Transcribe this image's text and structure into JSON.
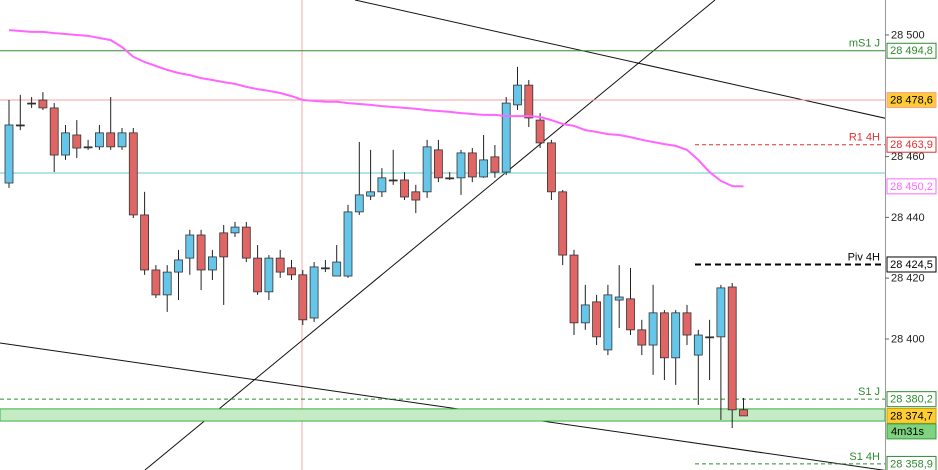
{
  "chart_data": {
    "type": "candlestick",
    "ylim": [
      28356.9,
      28511.5
    ],
    "yticks": [
      {
        "value": 28500,
        "label": "28 500"
      },
      {
        "value": 28460,
        "label": "28 460"
      },
      {
        "value": 28440,
        "label": "28 440"
      },
      {
        "value": 28420,
        "label": "28 420"
      },
      {
        "value": 28400,
        "label": "28 400"
      }
    ],
    "up_color": "#66c6ea",
    "down_color": "#e06666",
    "candles": {
      "open": [
        28451.3,
        28470.4,
        28477.6,
        28478.6,
        28476.0,
        28460.5,
        28467.1,
        28463.2,
        28463.2,
        28467.8,
        28463.2,
        28467.8,
        28440.8,
        28422.7,
        28414.5,
        28422.0,
        28426.6,
        28434.2,
        28422.7,
        28434.9,
        28434.9,
        28436.8,
        28426.6,
        28415.5,
        28426.6,
        28423.4,
        28421.1,
        28406.9,
        28423.4,
        28420.7,
        28420.7,
        28441.8,
        28447.0,
        28448.4,
        28452.3,
        28452.3,
        28448.4,
        28448.4,
        28462.2,
        28453.0,
        28453.0,
        28461.2,
        28453.3,
        28459.9,
        28454.9,
        28477.0,
        28483.5,
        28472.0,
        28464.5,
        28448.4,
        28427.6,
        28405.3,
        28412.2,
        28396.4,
        28412.8,
        28413.2,
        28403.0,
        28398.0,
        28408.6,
        28393.8,
        28408.6,
        28394.7,
        28400.7,
        28400.7,
        28417.1,
        28376.7
      ],
      "high": [
        28478.6,
        28480.3,
        28479.6,
        28481.2,
        28477.6,
        28470.4,
        28472.0,
        28465.5,
        28470.4,
        28479.6,
        28469.4,
        28469.4,
        28448.4,
        28424.3,
        28424.3,
        28429.3,
        28435.9,
        28435.9,
        28429.3,
        28437.5,
        28438.5,
        28438.5,
        28430.9,
        28427.6,
        28429.3,
        28426.0,
        28422.7,
        28425.3,
        28426.0,
        28430.9,
        28444.1,
        28464.8,
        28462.2,
        28456.2,
        28462.2,
        28454.9,
        28450.7,
        28465.5,
        28465.5,
        28454.9,
        28462.2,
        28462.8,
        28467.1,
        28463.8,
        28479.6,
        28489.5,
        28485.2,
        28474.3,
        28465.5,
        28449.0,
        28429.3,
        28417.8,
        28414.5,
        28417.8,
        28424.3,
        28423.4,
        28406.3,
        28417.8,
        28409.5,
        28409.5,
        28411.2,
        28403.0,
        28406.3,
        28417.8,
        28418.4,
        28380.6
      ],
      "low": [
        28449.7,
        28468.7,
        28476.0,
        28475.3,
        28454.9,
        28458.9,
        28459.5,
        28462.2,
        28462.2,
        28462.2,
        28462.2,
        28439.8,
        28421.1,
        28413.5,
        28408.9,
        28412.8,
        28421.1,
        28416.1,
        28419.4,
        28411.2,
        28433.6,
        28425.3,
        28414.5,
        28412.8,
        28420.1,
        28419.4,
        28404.6,
        28405.6,
        28422.0,
        28420.7,
        28420.1,
        28440.8,
        28445.7,
        28446.7,
        28450.7,
        28445.7,
        28441.4,
        28446.4,
        28451.6,
        28452.3,
        28447.4,
        28451.6,
        28453.0,
        28453.0,
        28453.9,
        28475.3,
        28469.7,
        28462.8,
        28445.7,
        28424.3,
        28401.3,
        28403.0,
        28398.0,
        28394.7,
        28403.6,
        28401.3,
        28394.7,
        28388.2,
        28386.5,
        28384.9,
        28398.0,
        28378.3,
        28386.5,
        28373.4,
        28370.7,
        28374.7
      ],
      "close": [
        28470.4,
        28470.4,
        28477.6,
        28476.0,
        28460.5,
        28467.8,
        28462.8,
        28463.2,
        28467.8,
        28463.2,
        28467.8,
        28440.8,
        28422.7,
        28414.5,
        28422.0,
        28426.0,
        28434.2,
        28422.7,
        28427.0,
        28427.0,
        28436.8,
        28426.6,
        28415.5,
        28426.6,
        28422.0,
        28421.1,
        28406.3,
        28423.7,
        28423.4,
        28425.3,
        28441.8,
        28447.4,
        28448.4,
        28453.0,
        28452.3,
        28446.7,
        28445.7,
        28463.2,
        28453.0,
        28453.0,
        28461.2,
        28453.3,
        28458.9,
        28454.9,
        28477.6,
        28483.5,
        28472.7,
        28464.5,
        28448.4,
        28427.6,
        28405.3,
        28411.2,
        28400.7,
        28414.5,
        28413.8,
        28403.0,
        28398.0,
        28408.6,
        28393.8,
        28408.6,
        28401.3,
        28401.3,
        28400.7,
        28416.8,
        28376.7,
        28374.7
      ]
    },
    "moving_average": {
      "color": "#ff66ff",
      "label": "28 450,2",
      "values": [
        28501.6,
        28501.3,
        28501.0,
        28501.0,
        28500.6,
        28500.3,
        28500.0,
        28499.7,
        28499.0,
        28498.3,
        28496.0,
        28492.8,
        28491.1,
        28489.8,
        28488.5,
        28487.5,
        28486.8,
        28485.8,
        28485.2,
        28484.5,
        28483.9,
        28482.9,
        28482.2,
        28481.6,
        28480.9,
        28479.9,
        28478.6,
        28478.3,
        28478.0,
        28478.0,
        28477.6,
        28477.3,
        28477.0,
        28476.6,
        28476.3,
        28476.0,
        28475.7,
        28475.3,
        28475.0,
        28474.7,
        28474.3,
        28474.0,
        28473.7,
        28473.7,
        28473.3,
        28473.3,
        28473.3,
        28473.0,
        28472.0,
        28470.7,
        28470.1,
        28468.7,
        28468.1,
        28467.4,
        28467.1,
        28466.4,
        28465.5,
        28464.8,
        28464.1,
        28463.5,
        28462.2,
        28458.9,
        28454.9,
        28452.0,
        28450.3,
        28450.2
      ]
    },
    "levels": [
      {
        "name": "mS1 J",
        "value": 28494.8,
        "label": "28 494,8",
        "color": "#2e8b2e",
        "dashed": false,
        "partial": false,
        "box_fill": "#ffffff",
        "text_color": "#2e8b2e"
      },
      {
        "value": 28478.6,
        "label": "28 478,6",
        "color": "#f4a0a0",
        "dashed": false,
        "partial": false,
        "box_fill": "#ffcc33",
        "text_color": "#000000"
      },
      {
        "name": "R1 4H",
        "value": 28463.9,
        "label": "28 463,9",
        "color": "#e03030",
        "dashed": true,
        "partial": true,
        "box_fill": "#ffffff",
        "text_color": "#e03030"
      },
      {
        "value": 28454.6,
        "color": "#66cccc",
        "dashed": false,
        "partial": false
      },
      {
        "name": "Piv 4H",
        "value": 28424.5,
        "label": "28 424,5",
        "color": "#000000",
        "dashed": true,
        "partial": true,
        "box_fill": "#ffffff",
        "text_color": "#000000"
      },
      {
        "name": "S1 J",
        "value": 28380.2,
        "label": "28 380,2",
        "color": "#2e8b2e",
        "dashed": true,
        "partial": false,
        "box_fill": "#ffffff",
        "text_color": "#2e8b2e"
      },
      {
        "name": "S1 4H",
        "value": 28358.9,
        "label": "28 358,9",
        "color": "#2e8b2e",
        "dashed": true,
        "partial": true,
        "box_fill": "#ffffff",
        "text_color": "#2e8b2e"
      }
    ],
    "current_price": {
      "value": 28374.7,
      "label": "28 374,7",
      "timer": "4m31s",
      "zone": [
        28373.0,
        28377.0
      ],
      "zone_color": "#c4ebc4",
      "box_fill": "#ffcc33",
      "timer_fill": "#7fd27f"
    }
  }
}
